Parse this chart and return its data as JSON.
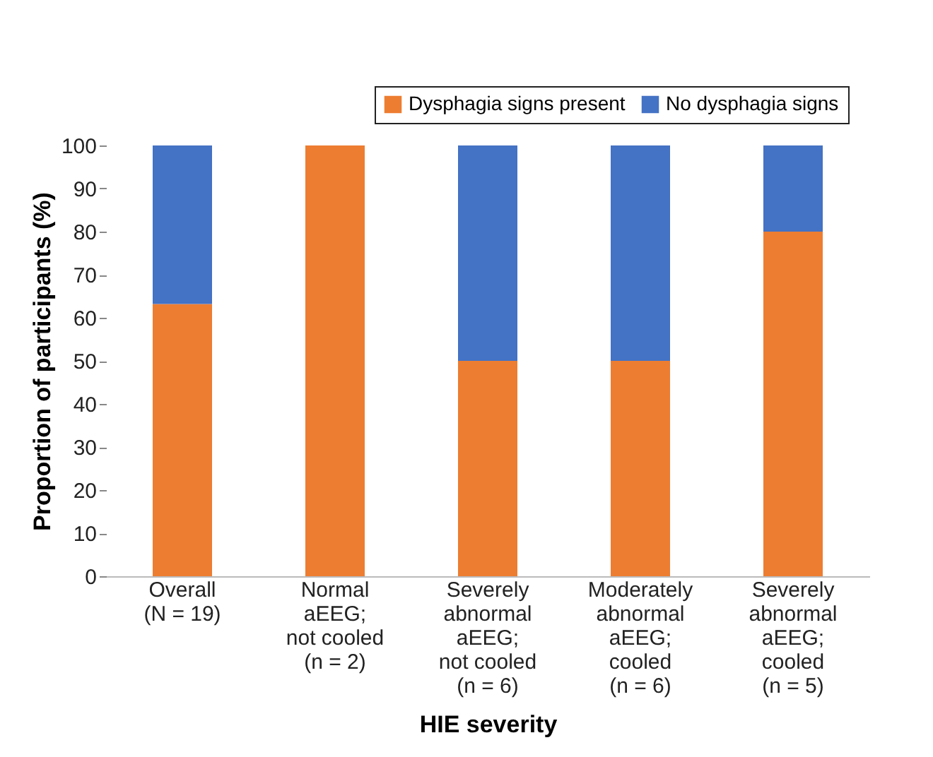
{
  "chart_data": {
    "type": "bar",
    "stacked": true,
    "categories": [
      "Overall\n(N = 19)",
      "Normal\naEEG;\nnot cooled\n(n = 2)",
      "Severely\nabnormal\naEEG;\nnot cooled\n(n = 6)",
      "Moderately\nabnormal\naEEG;\ncooled\n(n = 6)",
      "Severely\nabnormal\naEEG;\ncooled\n(n = 5)"
    ],
    "series": [
      {
        "name": "Dysphagia signs present",
        "color": "#ed7d31",
        "values": [
          63.2,
          100,
          50,
          50,
          80
        ]
      },
      {
        "name": "No dysphagia signs",
        "color": "#4472c4",
        "values": [
          36.8,
          0,
          50,
          50,
          20
        ]
      }
    ],
    "xlabel": "HIE severity",
    "ylabel": "Proportion of participants (%)",
    "ylim": [
      0,
      100
    ],
    "yticks": [
      0,
      10,
      20,
      30,
      40,
      50,
      60,
      70,
      80,
      90,
      100
    ],
    "legend": "top right",
    "grid": false
  }
}
